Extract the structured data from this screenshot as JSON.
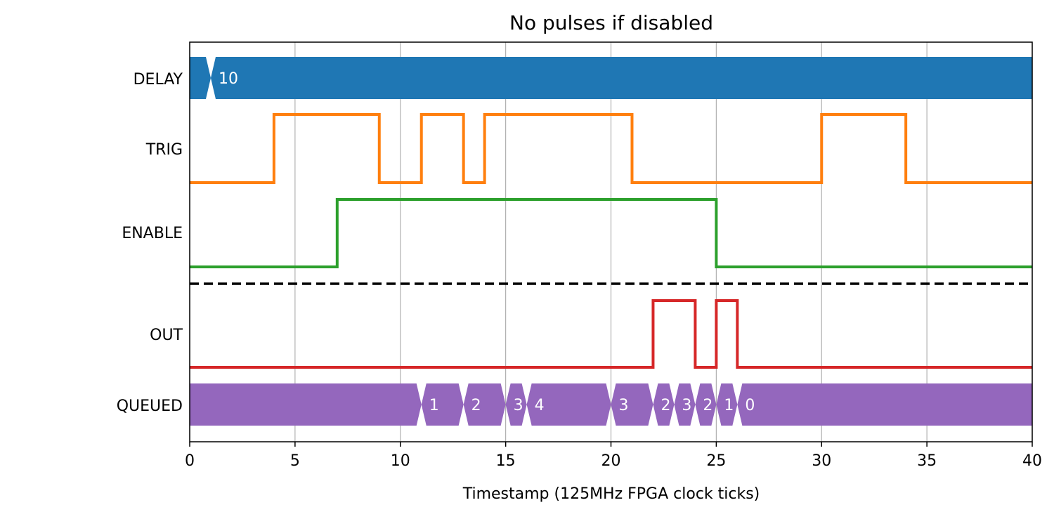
{
  "chart_data": {
    "type": "timing-diagram",
    "title": "No pulses if disabled",
    "xlabel": "Timestamp (125MHz FPGA clock ticks)",
    "xlim": [
      0,
      40
    ],
    "xticks": [
      0,
      5,
      10,
      15,
      20,
      25,
      30,
      35,
      40
    ],
    "grid": "vertical",
    "signals": [
      {
        "name": "DELAY",
        "kind": "bus",
        "color": "#1f77b4",
        "segments": [
          {
            "start": 0,
            "end": 1,
            "label": ""
          },
          {
            "start": 1,
            "end": 40,
            "label": "10"
          }
        ]
      },
      {
        "name": "TRIG",
        "kind": "digital",
        "color": "#ff7f0e",
        "initial": 0,
        "transitions": [
          [
            4,
            1
          ],
          [
            9,
            0
          ],
          [
            11,
            1
          ],
          [
            13,
            0
          ],
          [
            14,
            1
          ],
          [
            21,
            0
          ],
          [
            30,
            1
          ],
          [
            34,
            0
          ]
        ]
      },
      {
        "name": "ENABLE",
        "kind": "digital",
        "color": "#2ca02c",
        "initial": 0,
        "transitions": [
          [
            7,
            1
          ],
          [
            25,
            0
          ]
        ]
      },
      {
        "name": "OUT",
        "kind": "digital",
        "color": "#d62728",
        "initial": 0,
        "transitions": [
          [
            22,
            1
          ],
          [
            24,
            0
          ],
          [
            25,
            1
          ],
          [
            26,
            0
          ]
        ]
      },
      {
        "name": "QUEUED",
        "kind": "bus",
        "color": "#9467bd",
        "segments": [
          {
            "start": 0,
            "end": 11,
            "label": ""
          },
          {
            "start": 11,
            "end": 13,
            "label": "1"
          },
          {
            "start": 13,
            "end": 15,
            "label": "2"
          },
          {
            "start": 15,
            "end": 16,
            "label": "3"
          },
          {
            "start": 16,
            "end": 20,
            "label": "4"
          },
          {
            "start": 20,
            "end": 22,
            "label": "3"
          },
          {
            "start": 22,
            "end": 23,
            "label": "2"
          },
          {
            "start": 23,
            "end": 24,
            "label": "3"
          },
          {
            "start": 24,
            "end": 25,
            "label": "2"
          },
          {
            "start": 25,
            "end": 26,
            "label": "1"
          },
          {
            "start": 26,
            "end": 40,
            "label": "0"
          }
        ]
      }
    ],
    "separator": {
      "style": "dashed",
      "between": [
        "ENABLE",
        "OUT"
      ]
    }
  }
}
